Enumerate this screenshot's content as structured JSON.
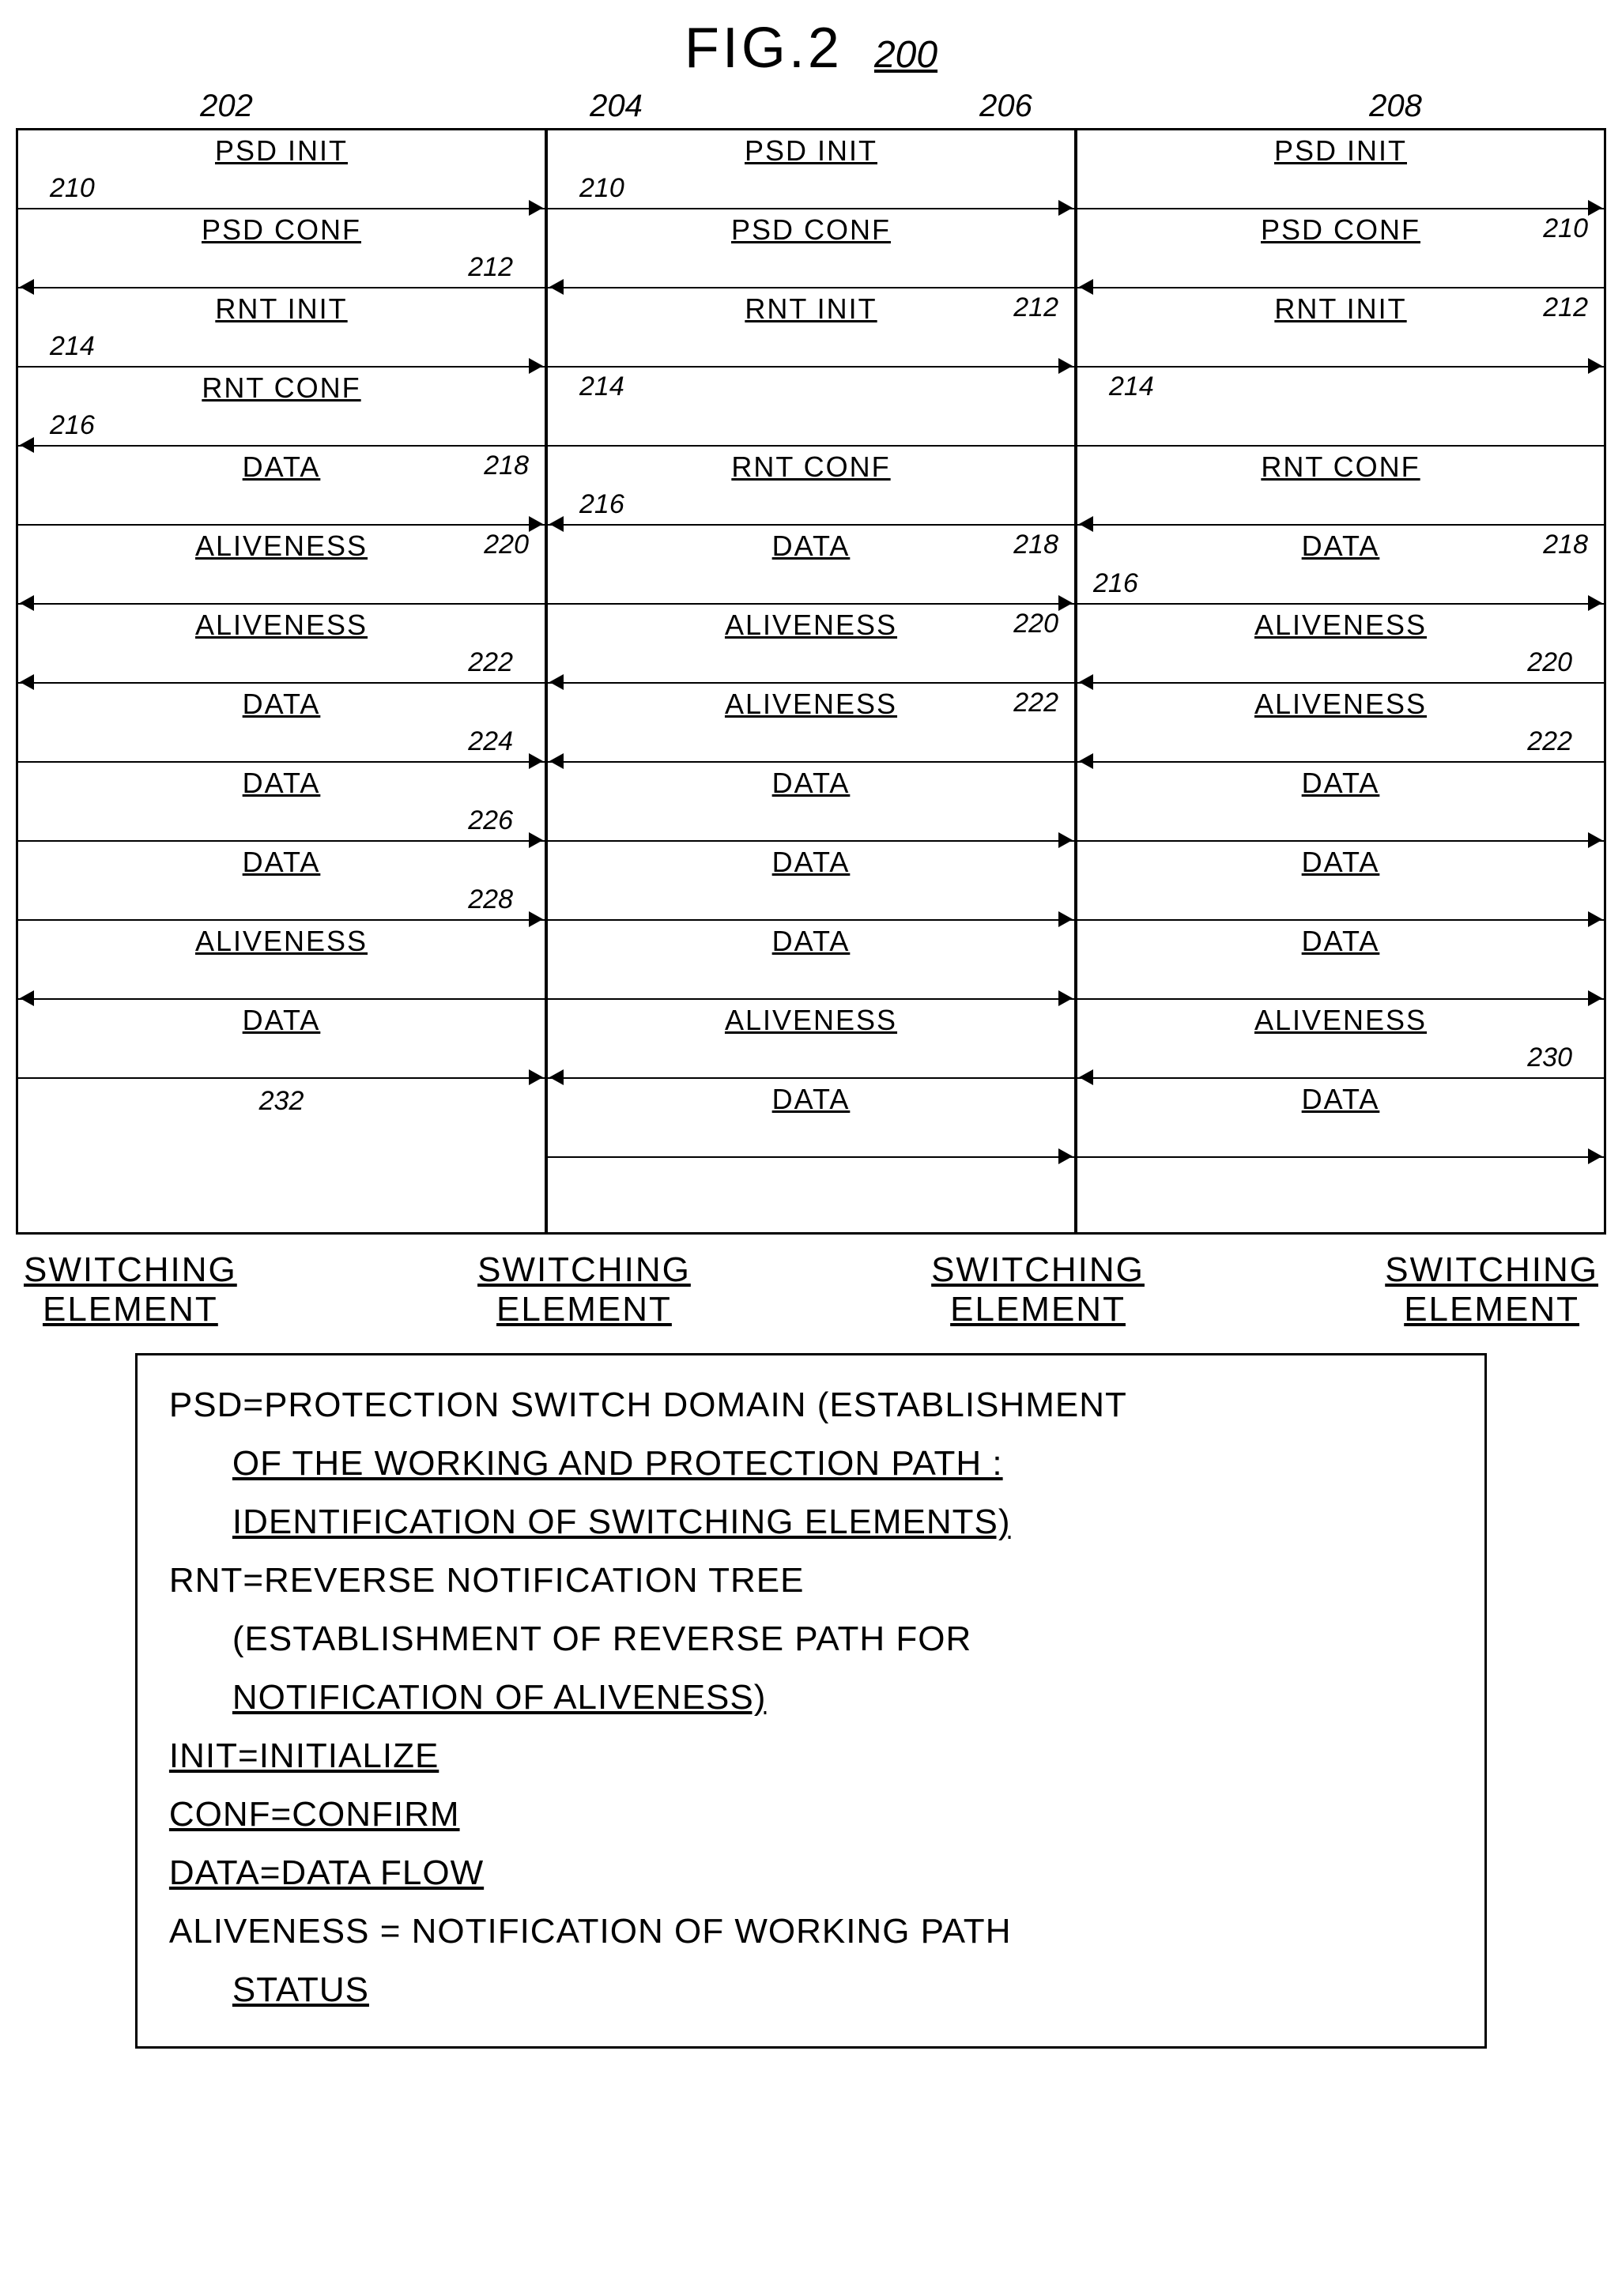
{
  "title": "FIG.2",
  "figure_ref": "200",
  "element_refs": [
    "202",
    "204",
    "206",
    "208"
  ],
  "columns": [
    {
      "messages": [
        {
          "label": "PSD INIT",
          "dir": "right",
          "ref": "210",
          "ref_pos": "bottom-left"
        },
        {
          "label": "PSD CONF",
          "dir": "left",
          "ref": "212",
          "ref_pos": "bottom-right"
        },
        {
          "label": "RNT INIT",
          "dir": "right",
          "ref": "214",
          "ref_pos": "bottom-left"
        },
        {
          "label": "RNT CONF",
          "dir": "left",
          "ref": "216",
          "ref_pos": "bottom-left"
        },
        {
          "label": "DATA",
          "dir": "right",
          "ref": "218",
          "ref_pos": "top-right",
          "ref2": ""
        },
        {
          "label": "ALIVENESS",
          "dir": "left",
          "ref": "220",
          "ref_pos": "top-right"
        },
        {
          "label": "ALIVENESS",
          "dir": "left",
          "ref": "222",
          "ref_pos": "bottom-right"
        },
        {
          "label": "DATA",
          "dir": "right",
          "ref": "224",
          "ref_pos": "bottom-right"
        },
        {
          "label": "DATA",
          "dir": "right",
          "ref": "226",
          "ref_pos": "bottom-right"
        },
        {
          "label": "DATA",
          "dir": "right",
          "ref": "228",
          "ref_pos": "bottom-right"
        },
        {
          "label": "ALIVENESS",
          "dir": "left",
          "ref": "",
          "ref_pos": ""
        },
        {
          "label": "DATA",
          "dir": "right",
          "ref": "232",
          "ref_pos": "below"
        }
      ]
    },
    {
      "messages": [
        {
          "label": "PSD INIT",
          "dir": "right",
          "ref": "210",
          "ref_pos": "bottom-left"
        },
        {
          "label": "PSD CONF",
          "dir": "left",
          "ref": "",
          "ref_pos": ""
        },
        {
          "label": "RNT INIT",
          "dir": "right",
          "ref": "212",
          "ref_pos": "top-right"
        },
        {
          "label": "",
          "dir": "none",
          "ref": "214",
          "ref_pos": "top-left"
        },
        {
          "label": "RNT CONF",
          "dir": "left",
          "ref": "216",
          "ref_pos": "bottom-left"
        },
        {
          "label": "DATA",
          "dir": "right",
          "ref": "218",
          "ref_pos": "top-right"
        },
        {
          "label": "ALIVENESS",
          "dir": "left",
          "ref": "220",
          "ref_pos": "top-right"
        },
        {
          "label": "ALIVENESS",
          "dir": "left",
          "ref": "222",
          "ref_pos": "top-right"
        },
        {
          "label": "DATA",
          "dir": "right",
          "ref": "",
          "ref_pos": ""
        },
        {
          "label": "DATA",
          "dir": "right",
          "ref": "",
          "ref_pos": ""
        },
        {
          "label": "DATA",
          "dir": "right",
          "ref": "",
          "ref_pos": ""
        },
        {
          "label": "ALIVENESS",
          "dir": "left",
          "ref": "",
          "ref_pos": ""
        },
        {
          "label": "DATA",
          "dir": "right",
          "ref": "",
          "ref_pos": ""
        }
      ]
    },
    {
      "messages": [
        {
          "label": "PSD INIT",
          "dir": "right",
          "ref": "",
          "ref_pos": ""
        },
        {
          "label": "PSD CONF",
          "dir": "left",
          "ref": "210",
          "ref_pos": "top-right"
        },
        {
          "label": "RNT INIT",
          "dir": "right",
          "ref": "212",
          "ref_pos": "top-right"
        },
        {
          "label": "",
          "dir": "none",
          "ref": "214",
          "ref_pos": "top-left"
        },
        {
          "label": "RNT CONF",
          "dir": "left",
          "ref": "",
          "ref_pos": ""
        },
        {
          "label": "DATA",
          "dir": "right",
          "ref": "218",
          "ref_pos": "top-right",
          "ref2": "216",
          "ref2_pos": "bottom-left"
        },
        {
          "label": "ALIVENESS",
          "dir": "left",
          "ref": "220",
          "ref_pos": "bottom-right"
        },
        {
          "label": "ALIVENESS",
          "dir": "left",
          "ref": "222",
          "ref_pos": "bottom-right"
        },
        {
          "label": "DATA",
          "dir": "right",
          "ref": "",
          "ref_pos": ""
        },
        {
          "label": "DATA",
          "dir": "right",
          "ref": "",
          "ref_pos": ""
        },
        {
          "label": "DATA",
          "dir": "right",
          "ref": "",
          "ref_pos": ""
        },
        {
          "label": "ALIVENESS",
          "dir": "left",
          "ref": "230",
          "ref_pos": "bottom-right"
        },
        {
          "label": "DATA",
          "dir": "right",
          "ref": "",
          "ref_pos": ""
        }
      ]
    }
  ],
  "bottom_label": "SWITCHING ELEMENT",
  "legend": {
    "psd": "PSD=PROTECTION SWITCH DOMAIN (ESTABLISHMENT",
    "psd2": "OF THE WORKING AND PROTECTION PATH :",
    "psd3": "IDENTIFICATION OF SWITCHING ELEMENTS)",
    "rnt": "RNT=REVERSE NOTIFICATION TREE",
    "rnt2": "(ESTABLISHMENT OF REVERSE PATH FOR",
    "rnt3": "NOTIFICATION OF ALIVENESS)",
    "init": "INIT=INITIALIZE",
    "conf": "CONF=CONFIRM",
    "data": "DATA=DATA FLOW",
    "aliveness": "ALIVENESS = NOTIFICATION OF WORKING PATH",
    "aliveness2": "STATUS"
  }
}
